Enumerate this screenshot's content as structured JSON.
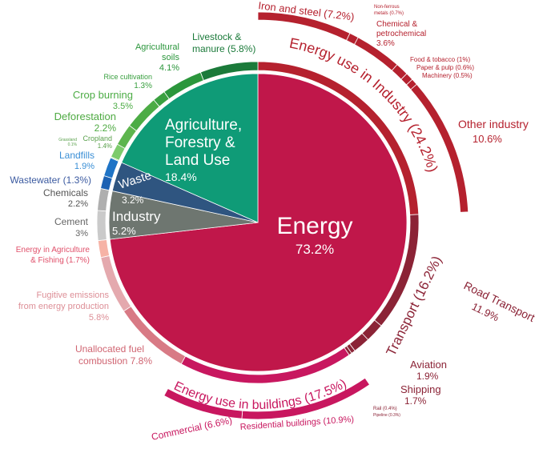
{
  "chart_data": {
    "type": "pie",
    "title": "",
    "unit": "%",
    "sectors": [
      {
        "name": "Energy",
        "value": 73.2,
        "label": "Energy",
        "pct": "73.2%",
        "color": "#c0174a"
      },
      {
        "name": "Industry",
        "value": 5.2,
        "label": "Industry",
        "pct": "5.2%",
        "color": "#6e7670"
      },
      {
        "name": "Waste",
        "value": 3.2,
        "label": "Waste",
        "pct": "3.2%",
        "color": "#2f5580"
      },
      {
        "name": "Agriculture, Forestry & Land Use",
        "value": 18.4,
        "label_lines": [
          "Agriculture,",
          "Forestry &",
          "Land Use"
        ],
        "pct": "18.4%",
        "color": "#0f9b77"
      }
    ],
    "subsectors": [
      {
        "name": "Energy use in Industry",
        "value": 24.2,
        "color": "#b5212e",
        "label": "Energy use in Industry (24.2%)"
      },
      {
        "name": "Road Transport",
        "value": 11.9,
        "color": "#8b2336"
      },
      {
        "name": "Aviation",
        "value": 1.9,
        "color": "#8b2336"
      },
      {
        "name": "Shipping",
        "value": 1.7,
        "color": "#8b2336"
      },
      {
        "name": "Rail",
        "value": 0.4,
        "color": "#8b2336"
      },
      {
        "name": "Pipeline",
        "value": 0.3,
        "color": "#8b2336"
      },
      {
        "name": "Energy use in buildings",
        "value": 17.5,
        "color": "#c8175f",
        "label": "Energy use in buildings (17.5%)"
      },
      {
        "name": "Unallocated fuel combustion",
        "value": 7.8,
        "color": "#d87a85"
      },
      {
        "name": "Fugitive emissions from energy production",
        "value": 5.8,
        "color": "#e4a9ae"
      },
      {
        "name": "Energy in Agriculture & Fishing",
        "value": 1.7,
        "color": "#f6b3a6"
      },
      {
        "name": "Cement",
        "value": 3.0,
        "color": "#cacaca"
      },
      {
        "name": "Chemicals",
        "value": 2.2,
        "color": "#afafaf"
      },
      {
        "name": "Wastewater",
        "value": 1.3,
        "color": "#1d62b3"
      },
      {
        "name": "Landfills",
        "value": 1.9,
        "color": "#1f74c6"
      },
      {
        "name": "Grassland",
        "value": 0.1,
        "color": "#8fd47f"
      },
      {
        "name": "Cropland",
        "value": 1.4,
        "color": "#7ccb6c"
      },
      {
        "name": "Deforestation",
        "value": 2.2,
        "color": "#5db54e"
      },
      {
        "name": "Crop burning",
        "value": 3.5,
        "color": "#4cac45"
      },
      {
        "name": "Rice cultivation",
        "value": 1.3,
        "color": "#3aa040"
      },
      {
        "name": "Agricultural soils",
        "value": 4.1,
        "color": "#2b963c"
      },
      {
        "name": "Livestock & manure",
        "value": 5.8,
        "color": "#1b7a3a"
      }
    ],
    "transport_label": "Transport (16.2%)",
    "industry_breakdown": [
      {
        "name": "Iron and steel",
        "value": 7.2,
        "color": "#b5212e"
      },
      {
        "name": "Non-ferrous metals",
        "value": 0.7,
        "color": "#b5212e"
      },
      {
        "name": "Chemical & petrochemical",
        "value": 3.6,
        "color": "#b5212e"
      },
      {
        "name": "Food & tobacco",
        "value": 1.0,
        "color": "#b5212e"
      },
      {
        "name": "Paper & pulp",
        "value": 0.6,
        "color": "#b5212e"
      },
      {
        "name": "Machinery",
        "value": 0.5,
        "color": "#b5212e"
      },
      {
        "name": "Other industry",
        "value": 10.6,
        "color": "#b5212e"
      }
    ],
    "buildings_breakdown": [
      {
        "name": "Residential buildings",
        "value": 10.9,
        "color": "#c8175f"
      },
      {
        "name": "Commercial",
        "value": 6.6,
        "color": "#c8175f"
      }
    ]
  },
  "labels": {
    "iron": "Iron and steel (7.2%)",
    "nonferrous1": "Non-ferrous",
    "nonferrous2": "metals (0.7%)",
    "chem1": "Chemical &",
    "chem2": "petrochemical",
    "chem3": "3.6%",
    "food": "Food & tobacco (1%)",
    "paper": "Paper & pulp (0.6%)",
    "machinery": "Machinery (0.5%)",
    "other1": "Other industry",
    "other2": "10.6%",
    "road1": "Road Transport",
    "road2": "11.9%",
    "aviation1": "Aviation",
    "aviation2": "1.9%",
    "shipping1": "Shipping",
    "shipping2": "1.7%",
    "rail": "Rail (0.4%)",
    "pipeline": "Pipeline (0.3%)",
    "residential": "Residential buildings (10.9%)",
    "commercial": "Commercial (6.6%)",
    "unalloc1": "Unallocated fuel",
    "unalloc2": "combustion 7.8%",
    "fugitive1": "Fugitive emissions",
    "fugitive2": "from energy production",
    "fugitive3": "5.8%",
    "agfish1": "Energy in Agriculture",
    "agfish2": "& Fishing (1.7%)",
    "cement1": "Cement",
    "cement2": "3%",
    "chemicals1": "Chemicals",
    "chemicals2": "2.2%",
    "wastewater": "Wastewater (1.3%)",
    "landfills1": "Landfills",
    "landfills2": "1.9%",
    "grassland1": "Grassland",
    "grassland2": "0.1%",
    "cropland1": "Cropland",
    "cropland2": "1.4%",
    "defor1": "Deforestation",
    "defor2": "2.2%",
    "cropburn1": "Crop burning",
    "cropburn2": "3.5%",
    "rice1": "Rice cultivation",
    "rice2": "1.3%",
    "soils1": "Agricultural",
    "soils2": "soils",
    "soils3": "4.1%",
    "livestock1": "Livestock &",
    "livestock2": "manure (5.8%)"
  }
}
